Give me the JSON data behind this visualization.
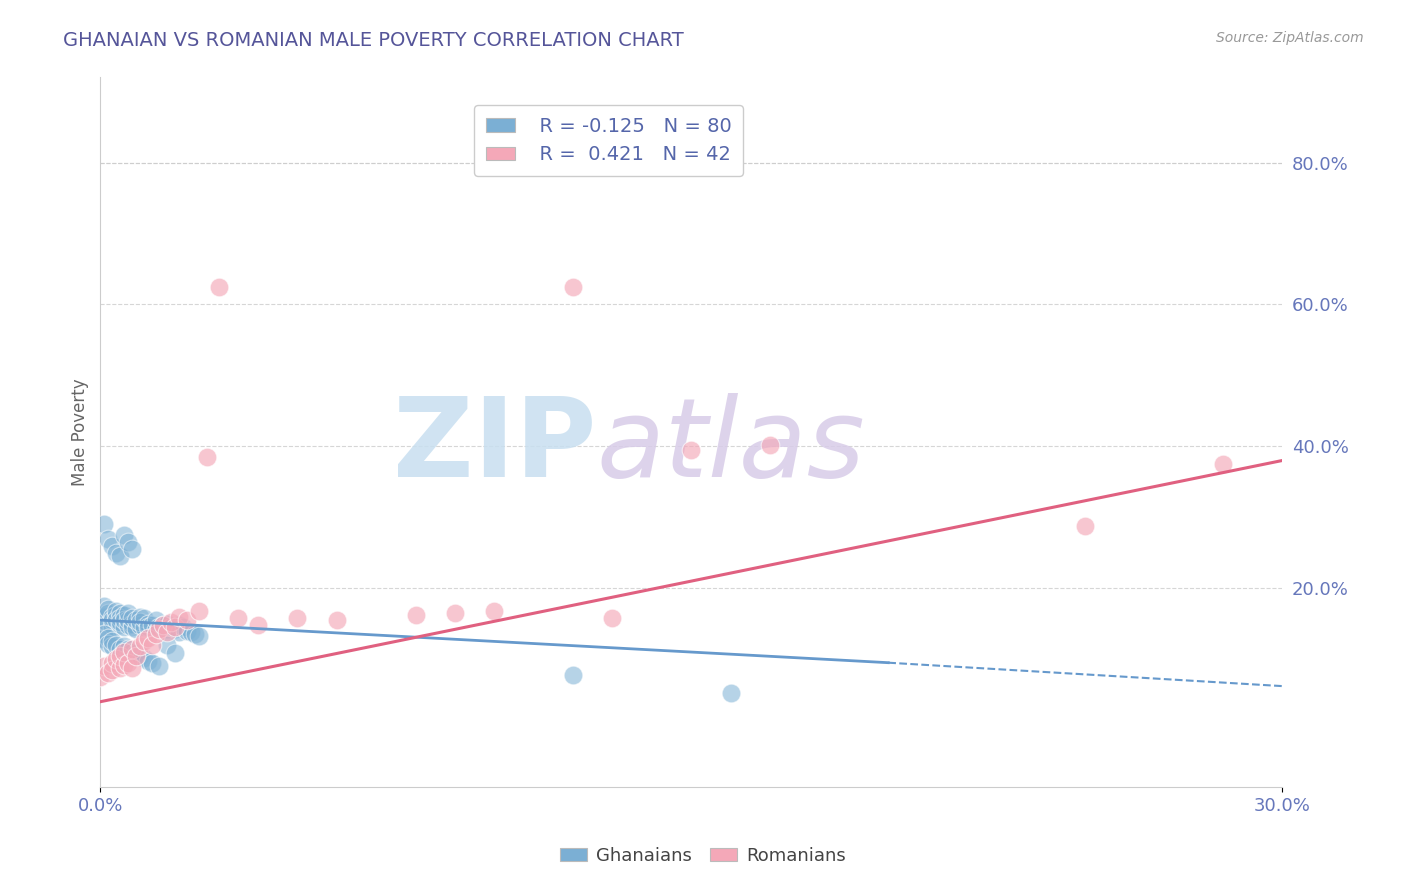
{
  "title": "GHANAIAN VS ROMANIAN MALE POVERTY CORRELATION CHART",
  "source": "Source: ZipAtlas.com",
  "ylabel": "Male Poverty",
  "ylabel_right_ticks": [
    "80.0%",
    "60.0%",
    "40.0%",
    "20.0%"
  ],
  "ylabel_right_vals": [
    0.8,
    0.6,
    0.4,
    0.2
  ],
  "xlim": [
    0.0,
    0.3
  ],
  "ylim": [
    -0.08,
    0.92
  ],
  "ghanaians_x": [
    0.0,
    0.001,
    0.001,
    0.002,
    0.002,
    0.002,
    0.003,
    0.003,
    0.003,
    0.004,
    0.004,
    0.004,
    0.005,
    0.005,
    0.005,
    0.005,
    0.006,
    0.006,
    0.006,
    0.007,
    0.007,
    0.007,
    0.008,
    0.008,
    0.008,
    0.009,
    0.009,
    0.01,
    0.01,
    0.01,
    0.011,
    0.011,
    0.012,
    0.012,
    0.013,
    0.014,
    0.014,
    0.015,
    0.016,
    0.017,
    0.017,
    0.018,
    0.019,
    0.02,
    0.02,
    0.021,
    0.022,
    0.023,
    0.024,
    0.025,
    0.0,
    0.001,
    0.002,
    0.002,
    0.003,
    0.003,
    0.004,
    0.005,
    0.006,
    0.006,
    0.007,
    0.008,
    0.009,
    0.01,
    0.011,
    0.012,
    0.013,
    0.015,
    0.017,
    0.019,
    0.001,
    0.002,
    0.003,
    0.004,
    0.005,
    0.006,
    0.007,
    0.008,
    0.12,
    0.16
  ],
  "ghanaians_y": [
    0.155,
    0.16,
    0.175,
    0.165,
    0.15,
    0.17,
    0.145,
    0.16,
    0.155,
    0.162,
    0.168,
    0.155,
    0.148,
    0.165,
    0.158,
    0.152,
    0.145,
    0.162,
    0.155,
    0.148,
    0.155,
    0.165,
    0.15,
    0.145,
    0.158,
    0.142,
    0.155,
    0.148,
    0.16,
    0.152,
    0.145,
    0.158,
    0.15,
    0.145,
    0.148,
    0.142,
    0.155,
    0.145,
    0.148,
    0.142,
    0.15,
    0.145,
    0.142,
    0.148,
    0.138,
    0.145,
    0.14,
    0.138,
    0.135,
    0.132,
    0.128,
    0.135,
    0.13,
    0.122,
    0.118,
    0.125,
    0.12,
    0.115,
    0.112,
    0.118,
    0.115,
    0.11,
    0.108,
    0.105,
    0.102,
    0.098,
    0.095,
    0.09,
    0.12,
    0.108,
    0.29,
    0.27,
    0.26,
    0.25,
    0.245,
    0.275,
    0.265,
    0.255,
    0.078,
    0.052
  ],
  "romanians_x": [
    0.0,
    0.001,
    0.002,
    0.003,
    0.003,
    0.004,
    0.005,
    0.005,
    0.006,
    0.006,
    0.007,
    0.008,
    0.008,
    0.009,
    0.01,
    0.011,
    0.012,
    0.013,
    0.014,
    0.015,
    0.016,
    0.017,
    0.018,
    0.019,
    0.02,
    0.022,
    0.025,
    0.027,
    0.03,
    0.035,
    0.04,
    0.05,
    0.06,
    0.08,
    0.09,
    0.1,
    0.12,
    0.13,
    0.15,
    0.17,
    0.25,
    0.285
  ],
  "romanians_y": [
    0.075,
    0.09,
    0.08,
    0.095,
    0.085,
    0.1,
    0.088,
    0.105,
    0.092,
    0.11,
    0.095,
    0.088,
    0.115,
    0.105,
    0.118,
    0.125,
    0.13,
    0.12,
    0.135,
    0.142,
    0.148,
    0.138,
    0.152,
    0.145,
    0.16,
    0.155,
    0.168,
    0.385,
    0.625,
    0.158,
    0.148,
    0.158,
    0.155,
    0.162,
    0.165,
    0.168,
    0.625,
    0.158,
    0.395,
    0.402,
    0.288,
    0.375
  ],
  "blue_color": "#7bafd4",
  "pink_color": "#f4a8b8",
  "blue_line_color": "#6699cc",
  "pink_line_color": "#e06080",
  "bg_color": "#ffffff",
  "grid_color": "#cccccc",
  "title_color": "#555599",
  "source_color": "#999999"
}
